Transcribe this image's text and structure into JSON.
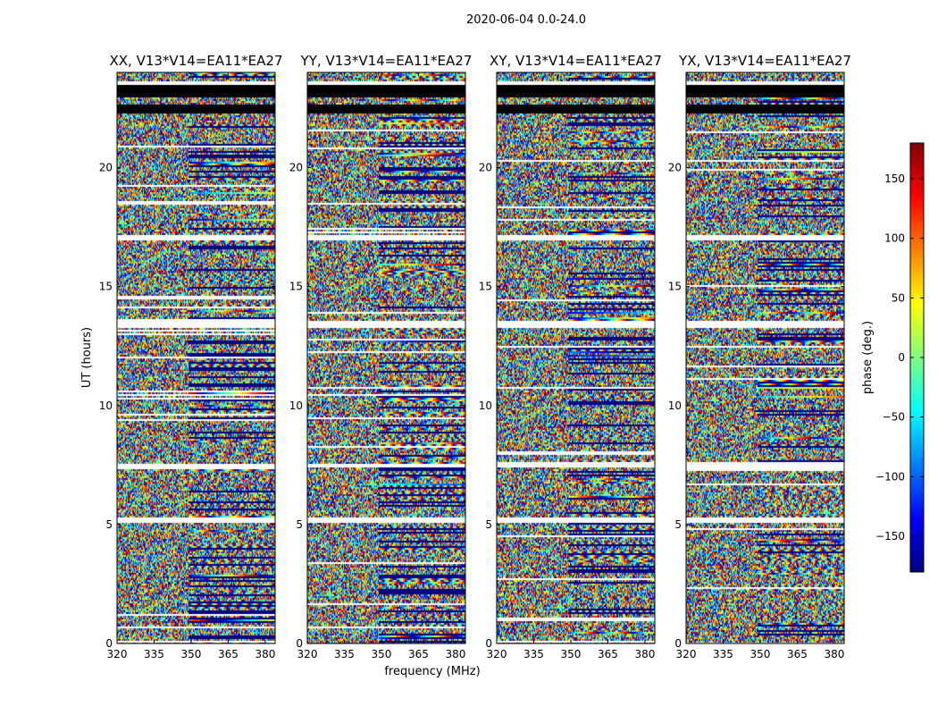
{
  "figure": {
    "title": "2020-06-04 0.0-24.0",
    "xlabel": "frequency (MHz)",
    "ylabel": "UT (hours)"
  },
  "colorbar": {
    "label": "phase (deg.)",
    "range": [
      -180,
      180
    ],
    "ticks": [
      {
        "value": 150,
        "label": "150"
      },
      {
        "value": 100,
        "label": "100"
      },
      {
        "value": 50,
        "label": "50"
      },
      {
        "value": 0,
        "label": "0"
      },
      {
        "value": -50,
        "label": "−50"
      },
      {
        "value": -100,
        "label": "−100"
      },
      {
        "value": -150,
        "label": "−150"
      }
    ],
    "colormap": "jet"
  },
  "chart_data": [
    {
      "type": "heatmap",
      "title": "XX, V13*V14=EA11*EA27",
      "xlim": [
        320,
        384
      ],
      "ylim": [
        0,
        24
      ],
      "xticks": [
        320,
        335,
        350,
        365,
        380
      ],
      "yticks": [
        0,
        5,
        10,
        15,
        20
      ],
      "z_quantity": "phase (deg.)",
      "zlim": [
        -180,
        180
      ],
      "flagged_rows_hours": [
        [
          22.3,
          22.7
        ],
        [
          23.0,
          23.5
        ]
      ],
      "gap_rows_hours": [
        [
          17.0,
          17.2
        ],
        [
          13.3,
          13.6
        ],
        [
          7.4,
          7.6
        ],
        [
          5.1,
          5.3
        ]
      ]
    },
    {
      "type": "heatmap",
      "title": "YY, V13*V14=EA11*EA27",
      "xlim": [
        320,
        384
      ],
      "ylim": [
        0,
        24
      ],
      "xticks": [
        320,
        335,
        350,
        365,
        380
      ],
      "yticks": [
        0,
        5,
        10,
        15,
        20
      ],
      "z_quantity": "phase (deg.)",
      "zlim": [
        -180,
        180
      ],
      "flagged_rows_hours": [
        [
          22.3,
          22.7
        ],
        [
          23.0,
          23.5
        ]
      ],
      "gap_rows_hours": [
        [
          17.0,
          17.2
        ],
        [
          13.3,
          13.6
        ],
        [
          7.4,
          7.6
        ],
        [
          5.1,
          5.3
        ]
      ]
    },
    {
      "type": "heatmap",
      "title": "XY, V13*V14=EA11*EA27",
      "xlim": [
        320,
        384
      ],
      "ylim": [
        0,
        24
      ],
      "xticks": [
        320,
        335,
        350,
        365,
        380
      ],
      "yticks": [
        0,
        5,
        10,
        15,
        20
      ],
      "z_quantity": "phase (deg.)",
      "zlim": [
        -180,
        180
      ],
      "flagged_rows_hours": [
        [
          22.3,
          22.7
        ],
        [
          23.0,
          23.5
        ]
      ],
      "gap_rows_hours": [
        [
          17.0,
          17.2
        ],
        [
          13.3,
          13.6
        ],
        [
          7.4,
          7.6
        ],
        [
          5.1,
          5.3
        ]
      ]
    },
    {
      "type": "heatmap",
      "title": "YX, V13*V14=EA11*EA27",
      "xlim": [
        320,
        384
      ],
      "ylim": [
        0,
        24
      ],
      "xticks": [
        320,
        335,
        350,
        365,
        380
      ],
      "yticks": [
        0,
        5,
        10,
        15,
        20
      ],
      "z_quantity": "phase (deg.)",
      "zlim": [
        -180,
        180
      ],
      "flagged_rows_hours": [
        [
          22.3,
          22.7
        ],
        [
          23.0,
          23.5
        ]
      ],
      "gap_rows_hours": [
        [
          17.0,
          17.2
        ],
        [
          13.3,
          13.6
        ],
        [
          7.4,
          7.6
        ],
        [
          5.1,
          5.3
        ]
      ]
    }
  ]
}
